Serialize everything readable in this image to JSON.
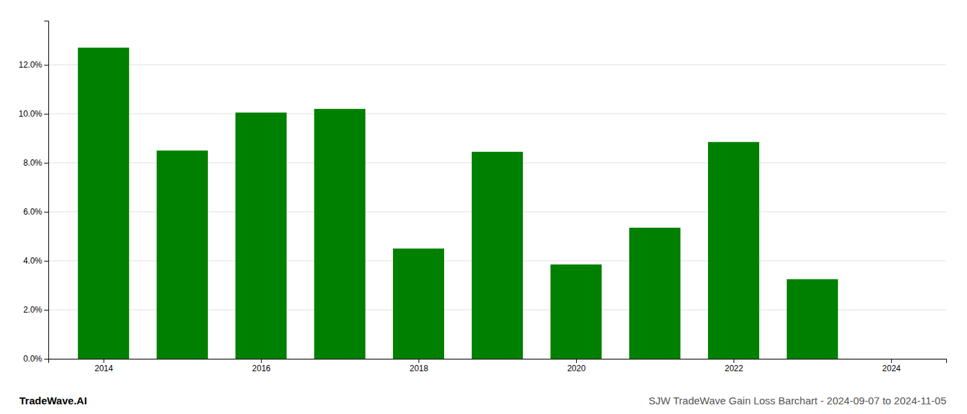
{
  "chart_data": {
    "type": "bar",
    "title": "SJW TradeWave Gain Loss Barchart - 2024-09-07 to 2024-11-05",
    "annotations": [
      "TradeWave.AI"
    ],
    "x": [
      2014,
      2015,
      2016,
      2017,
      2018,
      2019,
      2020,
      2021,
      2022,
      2023
    ],
    "values": [
      0.127,
      0.085,
      0.1005,
      0.102,
      0.045,
      0.0845,
      0.0385,
      0.0535,
      0.0885,
      0.0325
    ],
    "color": "#008000",
    "xlim": [
      2013.3,
      2024.7
    ],
    "xticks": [
      2014,
      2016,
      2018,
      2020,
      2022,
      2024
    ],
    "ylim": [
      0.0,
      0.138
    ],
    "yticks": [
      {
        "value": 0.0,
        "label": "0.0%"
      },
      {
        "value": 0.02,
        "label": "2.0%"
      },
      {
        "value": 0.04,
        "label": "4.0%"
      },
      {
        "value": 0.06,
        "label": "6.0%"
      },
      {
        "value": 0.08,
        "label": "8.0%"
      },
      {
        "value": 0.1,
        "label": "10.0%"
      },
      {
        "value": 0.12,
        "label": "12.0%"
      }
    ],
    "grid": true
  }
}
